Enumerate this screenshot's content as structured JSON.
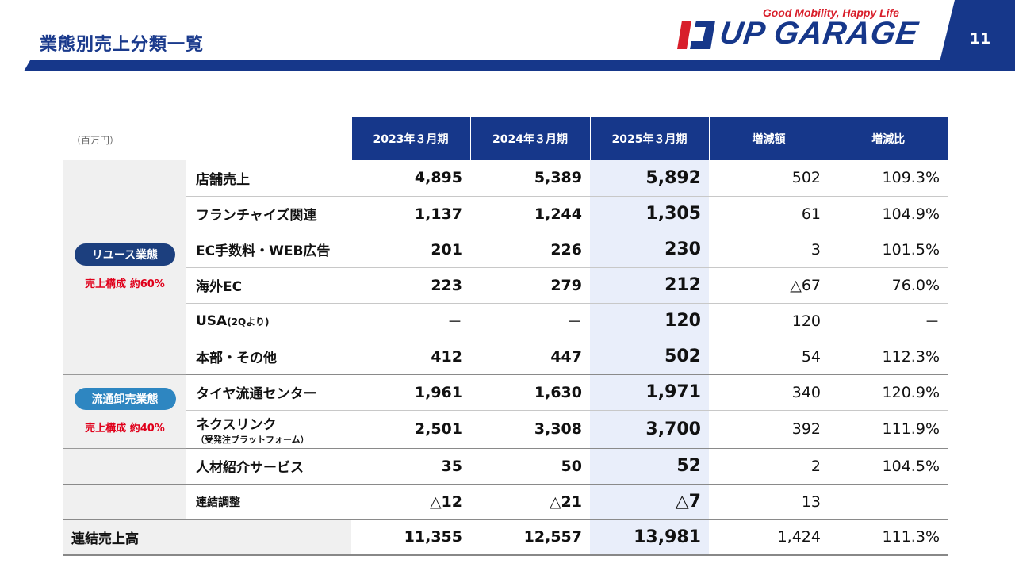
{
  "header": {
    "title": "業態別売上分類一覧",
    "page_number": "11",
    "logo": {
      "tagline": "Good Mobility, Happy Life",
      "name": "UP GARAGE"
    }
  },
  "colors": {
    "navy": "#16378a",
    "red": "#d81e2a",
    "pill_blue": "#2e86c1",
    "highlight": "#e9eefa"
  },
  "table": {
    "unit": "（百万円）",
    "columns": [
      "2023年３月期",
      "2024年３月期",
      "2025年３月期",
      "増減額",
      "増減比"
    ],
    "segments": {
      "reuse": {
        "label": "リユース業態",
        "composition": "売上構成 約60%"
      },
      "wholesale": {
        "label": "流通卸売業態",
        "composition": "売上構成 約40%"
      }
    },
    "rows": [
      {
        "item": "店舗売上",
        "sub": "",
        "v2023": "4,895",
        "v2024": "5,389",
        "v2025": "5,892",
        "diff": "502",
        "ratio": "109.3%"
      },
      {
        "item": "フランチャイズ関連",
        "sub": "",
        "v2023": "1,137",
        "v2024": "1,244",
        "v2025": "1,305",
        "diff": "61",
        "ratio": "104.9%"
      },
      {
        "item": "EC手数料・WEB広告",
        "sub": "",
        "v2023": "201",
        "v2024": "226",
        "v2025": "230",
        "diff": "3",
        "ratio": "101.5%"
      },
      {
        "item": "海外EC",
        "sub": "",
        "v2023": "223",
        "v2024": "279",
        "v2025": "212",
        "diff": "△67",
        "ratio": "76.0%"
      },
      {
        "item": "USA",
        "sub": "(2Qより)",
        "v2023": "－",
        "v2024": "－",
        "v2025": "120",
        "diff": "120",
        "ratio": "－"
      },
      {
        "item": "本部・その他",
        "sub": "",
        "v2023": "412",
        "v2024": "447",
        "v2025": "502",
        "diff": "54",
        "ratio": "112.3%"
      },
      {
        "item": "タイヤ流通センター",
        "sub": "",
        "v2023": "1,961",
        "v2024": "1,630",
        "v2025": "1,971",
        "diff": "340",
        "ratio": "120.9%"
      },
      {
        "item": "ネクスリンク",
        "sub": "（受発注プラットフォーム）",
        "v2023": "2,501",
        "v2024": "3,308",
        "v2025": "3,700",
        "diff": "392",
        "ratio": "111.9%"
      },
      {
        "item": "人材紹介サービス",
        "sub": "",
        "v2023": "35",
        "v2024": "50",
        "v2025": "52",
        "diff": "2",
        "ratio": "104.5%"
      },
      {
        "item": "連結調整",
        "sub": "",
        "v2023": "△12",
        "v2024": "△21",
        "v2025": "△7",
        "diff": "13",
        "ratio": ""
      }
    ],
    "total": {
      "label": "連結売上高",
      "v2023": "11,355",
      "v2024": "12,557",
      "v2025": "13,981",
      "diff": "1,424",
      "ratio": "111.3%"
    }
  }
}
